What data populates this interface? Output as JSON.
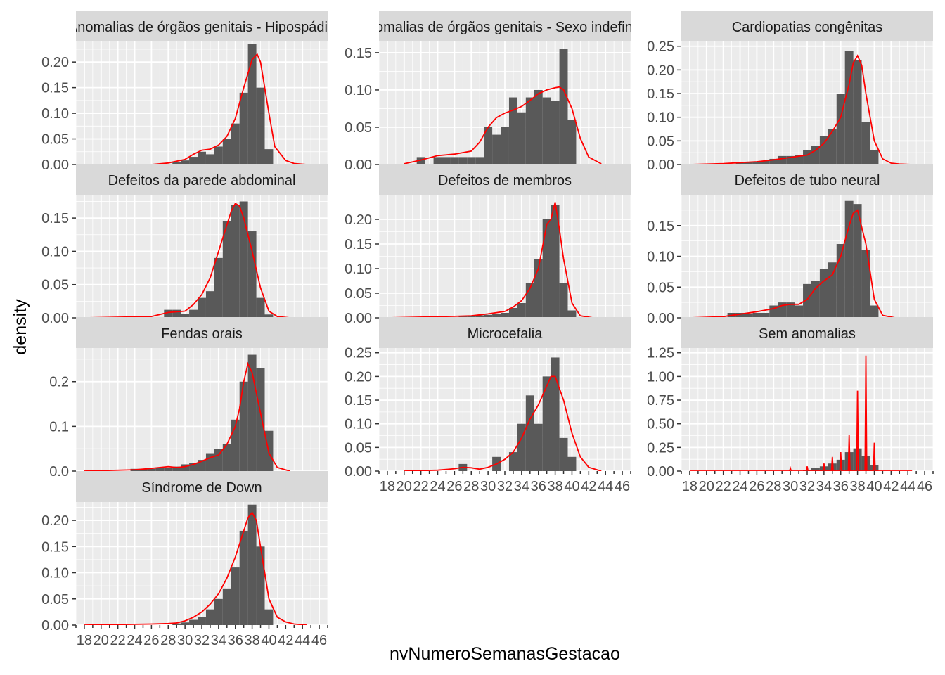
{
  "chart_data": {
    "type": "histogram",
    "xlabel": "nvNumeroSemanasGestacao",
    "ylabel": "density",
    "xlim": [
      17,
      47
    ],
    "x_tick_labels": [
      "18",
      "20",
      "22",
      "24",
      "26",
      "28",
      "30",
      "32",
      "34",
      "36",
      "38",
      "40",
      "42",
      "44",
      "46"
    ],
    "grid": true,
    "bin_width": 1,
    "density_color": "#ff0000",
    "bar_color": "#595959",
    "panel_bg": "#ebebeb",
    "strip_bg": "#d9d9d9",
    "panels": [
      {
        "title": "Anomalias de órgãos genitais - Hipospádia",
        "ylim": [
          0,
          0.24
        ],
        "yticks": [
          "0.00",
          "0.05",
          "0.10",
          "0.15",
          "0.20"
        ],
        "ytick_values": [
          0,
          0.05,
          0.1,
          0.15,
          0.2
        ],
        "bins": [
          29,
          30,
          31,
          32,
          33,
          34,
          35,
          36,
          37,
          38,
          39,
          40
        ],
        "values": [
          0.005,
          0.008,
          0.015,
          0.025,
          0.02,
          0.035,
          0.05,
          0.08,
          0.14,
          0.235,
          0.15,
          0.03
        ],
        "density_x": [
          18,
          26,
          28,
          30,
          31,
          32,
          33,
          34,
          35,
          36,
          37,
          38,
          38.6,
          39,
          40,
          40.7,
          42,
          43,
          44.5
        ],
        "density_y": [
          0,
          0,
          0.003,
          0.01,
          0.02,
          0.028,
          0.03,
          0.038,
          0.055,
          0.09,
          0.15,
          0.205,
          0.215,
          0.2,
          0.1,
          0.035,
          0.008,
          0.002,
          0
        ]
      },
      {
        "title": "Anomalias de órgãos genitais - Sexo indefinido",
        "ylim": [
          0,
          0.165
        ],
        "yticks": [
          "0.00",
          "0.05",
          "0.10",
          "0.15"
        ],
        "ytick_values": [
          0,
          0.05,
          0.1,
          0.15
        ],
        "bins": [
          22,
          24,
          25,
          26,
          27,
          28,
          29,
          30,
          31,
          32,
          33,
          34,
          35,
          36,
          37,
          38,
          39,
          40
        ],
        "values": [
          0.01,
          0.01,
          0.01,
          0.01,
          0.01,
          0.01,
          0.01,
          0.05,
          0.04,
          0.05,
          0.09,
          0.07,
          0.09,
          0.1,
          0.09,
          0.085,
          0.155,
          0.06
        ],
        "density_x": [
          20,
          22,
          24,
          26,
          28,
          29,
          30,
          31,
          32,
          33,
          34,
          35,
          36,
          37,
          38,
          38.5,
          39,
          40,
          41,
          42,
          43.5
        ],
        "density_y": [
          0.001,
          0.006,
          0.012,
          0.014,
          0.018,
          0.03,
          0.05,
          0.063,
          0.069,
          0.073,
          0.078,
          0.086,
          0.095,
          0.1,
          0.103,
          0.104,
          0.1,
          0.075,
          0.035,
          0.01,
          0.001
        ]
      },
      {
        "title": "Cardiopatias congênitas",
        "ylim": [
          0,
          0.26
        ],
        "yticks": [
          "0.00",
          "0.05",
          "0.10",
          "0.15",
          "0.20",
          "0.25"
        ],
        "ytick_values": [
          0,
          0.05,
          0.1,
          0.15,
          0.2,
          0.25
        ],
        "bins": [
          24,
          25,
          26,
          27,
          28,
          29,
          30,
          31,
          32,
          33,
          34,
          35,
          36,
          37,
          38,
          39,
          40
        ],
        "values": [
          0.003,
          0.005,
          0.005,
          0.008,
          0.012,
          0.018,
          0.018,
          0.02,
          0.03,
          0.04,
          0.06,
          0.075,
          0.15,
          0.24,
          0.22,
          0.09,
          0.03
        ],
        "density_x": [
          18,
          22,
          24,
          26,
          28,
          30,
          32,
          33,
          34,
          35,
          36,
          37,
          37.5,
          38,
          38.5,
          39,
          40,
          41,
          42,
          43,
          44.5
        ],
        "density_y": [
          0,
          0.002,
          0.004,
          0.006,
          0.01,
          0.015,
          0.02,
          0.03,
          0.045,
          0.07,
          0.1,
          0.17,
          0.215,
          0.23,
          0.21,
          0.15,
          0.05,
          0.012,
          0.003,
          0.001,
          0
        ]
      },
      {
        "title": "Defeitos da parede abdominal",
        "ylim": [
          0,
          0.185
        ],
        "yticks": [
          "0.00",
          "0.05",
          "0.10",
          "0.15"
        ],
        "ytick_values": [
          0,
          0.05,
          0.1,
          0.15
        ],
        "bins": [
          28,
          29,
          30,
          31,
          32,
          33,
          34,
          35,
          36,
          37,
          38,
          39,
          40
        ],
        "values": [
          0.012,
          0.012,
          0.006,
          0.012,
          0.03,
          0.04,
          0.09,
          0.145,
          0.17,
          0.175,
          0.13,
          0.03,
          0.005
        ],
        "density_x": [
          18,
          26,
          28,
          30,
          31,
          32,
          33,
          34,
          35,
          35.5,
          36,
          36.5,
          37,
          38,
          39,
          40,
          41,
          42.5
        ],
        "density_y": [
          0,
          0.002,
          0.008,
          0.01,
          0.02,
          0.035,
          0.06,
          0.1,
          0.14,
          0.16,
          0.172,
          0.168,
          0.15,
          0.1,
          0.045,
          0.01,
          0.002,
          0
        ]
      },
      {
        "title": "Defeitos de membros",
        "ylim": [
          0,
          0.25
        ],
        "yticks": [
          "0.00",
          "0.05",
          "0.10",
          "0.15",
          "0.20"
        ],
        "ytick_values": [
          0,
          0.05,
          0.1,
          0.15,
          0.2
        ],
        "bins": [
          27,
          28,
          29,
          30,
          31,
          32,
          33,
          34,
          35,
          36,
          37,
          38,
          39,
          40
        ],
        "values": [
          0.003,
          0.003,
          0.005,
          0.006,
          0.008,
          0.01,
          0.02,
          0.03,
          0.07,
          0.12,
          0.2,
          0.23,
          0.07,
          0.015
        ],
        "density_x": [
          18,
          26,
          28,
          30,
          32,
          33,
          34,
          35,
          36,
          37,
          37.5,
          38,
          38.5,
          39,
          40,
          41,
          42.5
        ],
        "density_y": [
          0,
          0.003,
          0.004,
          0.008,
          0.013,
          0.022,
          0.035,
          0.06,
          0.1,
          0.19,
          0.2,
          0.235,
          0.18,
          0.12,
          0.03,
          0.004,
          0
        ]
      },
      {
        "title": "Defeitos de tubo neural",
        "ylim": [
          0,
          0.2
        ],
        "yticks": [
          "0.00",
          "0.05",
          "0.10",
          "0.15"
        ],
        "ytick_values": [
          0,
          0.05,
          0.1,
          0.15
        ],
        "bins": [
          23,
          24,
          25,
          26,
          27,
          28,
          29,
          30,
          31,
          32,
          33,
          34,
          35,
          36,
          37,
          38,
          39,
          40
        ],
        "values": [
          0.008,
          0.008,
          0.007,
          0.008,
          0.008,
          0.02,
          0.025,
          0.025,
          0.02,
          0.055,
          0.06,
          0.08,
          0.09,
          0.12,
          0.19,
          0.185,
          0.11,
          0.02
        ],
        "density_x": [
          18,
          22,
          24,
          26,
          28,
          29,
          30,
          31,
          32,
          33,
          34,
          35,
          36,
          37,
          37.5,
          38,
          39,
          40,
          41,
          42.5
        ],
        "density_y": [
          0,
          0.002,
          0.006,
          0.01,
          0.015,
          0.02,
          0.022,
          0.022,
          0.03,
          0.048,
          0.06,
          0.07,
          0.1,
          0.15,
          0.17,
          0.175,
          0.12,
          0.03,
          0.004,
          0
        ]
      },
      {
        "title": "Fendas orais",
        "ylim": [
          0,
          0.275
        ],
        "yticks": [
          "0.0",
          "0.1",
          "0.2"
        ],
        "ytick_values": [
          0,
          0.1,
          0.2
        ],
        "bins": [
          24,
          25,
          26,
          27,
          28,
          29,
          30,
          31,
          32,
          33,
          34,
          35,
          36,
          37,
          38,
          39,
          40
        ],
        "values": [
          0.005,
          0.005,
          0.005,
          0.008,
          0.008,
          0.01,
          0.015,
          0.018,
          0.025,
          0.04,
          0.05,
          0.06,
          0.115,
          0.2,
          0.26,
          0.23,
          0.09
        ],
        "density_x": [
          18,
          24,
          26,
          28,
          29,
          30,
          31,
          32,
          33,
          34,
          35,
          36,
          36.5,
          37,
          37.5,
          38,
          39,
          40,
          41,
          42.5
        ],
        "density_y": [
          0,
          0.003,
          0.006,
          0.01,
          0.008,
          0.01,
          0.015,
          0.022,
          0.03,
          0.036,
          0.06,
          0.1,
          0.14,
          0.2,
          0.24,
          0.22,
          0.13,
          0.04,
          0.008,
          0
        ]
      },
      {
        "title": "Microcefalia",
        "ylim": [
          0,
          0.26
        ],
        "yticks": [
          "0.00",
          "0.05",
          "0.10",
          "0.15",
          "0.20",
          "0.25"
        ],
        "ytick_values": [
          0,
          0.05,
          0.1,
          0.15,
          0.2,
          0.25
        ],
        "bins": [
          27,
          31,
          33,
          34,
          35,
          36,
          37,
          38,
          39,
          40
        ],
        "values": [
          0.015,
          0.03,
          0.04,
          0.1,
          0.16,
          0.1,
          0.2,
          0.24,
          0.07,
          0.03
        ],
        "density_x": [
          20,
          24,
          26,
          27,
          28,
          29,
          30,
          31,
          32,
          33,
          34,
          35,
          36,
          37,
          37.5,
          38,
          39,
          40,
          41,
          42,
          43.5
        ],
        "density_y": [
          0,
          0.002,
          0.005,
          0.008,
          0.007,
          0.004,
          0.008,
          0.015,
          0.025,
          0.04,
          0.07,
          0.11,
          0.14,
          0.18,
          0.2,
          0.2,
          0.15,
          0.08,
          0.03,
          0.008,
          0
        ]
      },
      {
        "title": "Sem anomalias",
        "ylim": [
          0,
          1.3
        ],
        "yticks": [
          "0.00",
          "0.25",
          "0.50",
          "0.75",
          "1.00",
          "1.25"
        ],
        "ytick_values": [
          0,
          0.25,
          0.5,
          0.75,
          1.0,
          1.25
        ],
        "bins": [
          32,
          33,
          34,
          35,
          36,
          37,
          38,
          39,
          40
        ],
        "values": [
          0.01,
          0.03,
          0.05,
          0.08,
          0.12,
          0.2,
          0.24,
          0.16,
          0.06
        ],
        "density_x": [
          18,
          29,
          29.9,
          30,
          30.1,
          31,
          31.9,
          32,
          32.1,
          33,
          33.9,
          34,
          34.1,
          34.9,
          35,
          35.1,
          35.9,
          36,
          36.1,
          36.9,
          37,
          37.1,
          37.9,
          38,
          38.1,
          38.9,
          39,
          39.1,
          39.9,
          40,
          40.1,
          41,
          44.5
        ],
        "density_y": [
          0,
          0,
          0,
          0.03,
          0,
          0,
          0,
          0.05,
          0,
          0,
          0,
          0.08,
          0,
          0,
          0.15,
          0,
          0,
          0.2,
          0,
          0,
          0.38,
          0,
          0,
          0.85,
          0,
          0,
          1.22,
          0,
          0,
          0.3,
          0,
          0,
          0
        ]
      },
      {
        "title": "Síndrome de Down",
        "ylim": [
          0,
          0.235
        ],
        "yticks": [
          "0.00",
          "0.05",
          "0.10",
          "0.15",
          "0.20"
        ],
        "ytick_values": [
          0,
          0.05,
          0.1,
          0.15,
          0.2
        ],
        "bins": [
          29,
          30,
          31,
          32,
          33,
          34,
          35,
          36,
          37,
          38,
          39,
          40
        ],
        "values": [
          0.003,
          0.005,
          0.01,
          0.015,
          0.03,
          0.05,
          0.07,
          0.11,
          0.18,
          0.23,
          0.15,
          0.03
        ],
        "density_x": [
          18,
          26,
          28,
          29,
          30,
          31,
          32,
          33,
          34,
          35,
          36,
          37,
          37.5,
          38,
          38.5,
          39,
          40,
          41,
          42,
          43,
          44.5
        ],
        "density_y": [
          0,
          0.002,
          0.003,
          0.004,
          0.008,
          0.015,
          0.025,
          0.04,
          0.06,
          0.09,
          0.13,
          0.18,
          0.205,
          0.215,
          0.2,
          0.15,
          0.05,
          0.015,
          0.006,
          0.002,
          0
        ]
      }
    ]
  }
}
